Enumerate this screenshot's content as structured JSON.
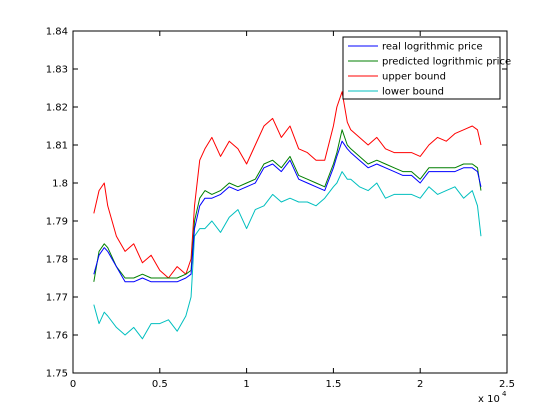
{
  "chart_data": {
    "type": "line",
    "title": "",
    "xlabel": "",
    "ylabel": "",
    "xlim": [
      0,
      2.5
    ],
    "ylim": [
      1.75,
      1.84
    ],
    "x_ticks": [
      "0",
      "0.5",
      "1",
      "1.5",
      "2",
      "2.5"
    ],
    "y_ticks": [
      "1.75",
      "1.76",
      "1.77",
      "1.78",
      "1.79",
      "1.8",
      "1.81",
      "1.82",
      "1.83",
      "1.84"
    ],
    "x_multiplier": {
      "base": "x 10",
      "exponent": "4"
    },
    "grid": false,
    "legend_position": "top-right",
    "x": [
      0.12,
      0.15,
      0.18,
      0.2,
      0.25,
      0.3,
      0.35,
      0.4,
      0.45,
      0.5,
      0.55,
      0.6,
      0.65,
      0.68,
      0.7,
      0.73,
      0.76,
      0.8,
      0.85,
      0.9,
      0.95,
      1.0,
      1.05,
      1.1,
      1.15,
      1.2,
      1.25,
      1.3,
      1.35,
      1.4,
      1.45,
      1.5,
      1.52,
      1.55,
      1.58,
      1.6,
      1.65,
      1.7,
      1.75,
      1.8,
      1.85,
      1.9,
      1.95,
      2.0,
      2.05,
      2.1,
      2.15,
      2.2,
      2.25,
      2.3,
      2.33,
      2.35
    ],
    "series": [
      {
        "name": "real logrithmic price",
        "color": "#0000ff",
        "values": [
          1.776,
          1.781,
          1.783,
          1.782,
          1.778,
          1.774,
          1.774,
          1.775,
          1.774,
          1.774,
          1.774,
          1.774,
          1.775,
          1.776,
          1.788,
          1.794,
          1.796,
          1.796,
          1.797,
          1.799,
          1.798,
          1.799,
          1.8,
          1.804,
          1.805,
          1.803,
          1.806,
          1.801,
          1.8,
          1.799,
          1.798,
          1.804,
          1.807,
          1.811,
          1.809,
          1.808,
          1.806,
          1.804,
          1.805,
          1.804,
          1.803,
          1.802,
          1.802,
          1.8,
          1.803,
          1.803,
          1.803,
          1.803,
          1.804,
          1.804,
          1.803,
          1.799
        ]
      },
      {
        "name": "predicted logrithmic price",
        "color": "#007f00",
        "values": [
          1.774,
          1.782,
          1.784,
          1.783,
          1.778,
          1.775,
          1.775,
          1.776,
          1.775,
          1.775,
          1.775,
          1.775,
          1.776,
          1.777,
          1.79,
          1.796,
          1.798,
          1.797,
          1.798,
          1.8,
          1.799,
          1.8,
          1.801,
          1.805,
          1.806,
          1.804,
          1.807,
          1.802,
          1.801,
          1.8,
          1.799,
          1.805,
          1.808,
          1.814,
          1.81,
          1.809,
          1.807,
          1.805,
          1.806,
          1.805,
          1.804,
          1.803,
          1.803,
          1.801,
          1.804,
          1.804,
          1.804,
          1.804,
          1.805,
          1.805,
          1.804,
          1.798
        ]
      },
      {
        "name": "upper bound",
        "color": "#ff0000",
        "values": [
          1.792,
          1.798,
          1.8,
          1.794,
          1.786,
          1.782,
          1.784,
          1.779,
          1.781,
          1.777,
          1.775,
          1.778,
          1.776,
          1.78,
          1.794,
          1.806,
          1.809,
          1.812,
          1.807,
          1.811,
          1.809,
          1.805,
          1.81,
          1.815,
          1.817,
          1.812,
          1.815,
          1.809,
          1.808,
          1.806,
          1.806,
          1.815,
          1.82,
          1.824,
          1.816,
          1.814,
          1.812,
          1.81,
          1.812,
          1.809,
          1.808,
          1.808,
          1.808,
          1.807,
          1.81,
          1.812,
          1.811,
          1.813,
          1.814,
          1.815,
          1.814,
          1.81
        ]
      },
      {
        "name": "lower bound",
        "color": "#00bfbf",
        "values": [
          1.768,
          1.763,
          1.766,
          1.765,
          1.762,
          1.76,
          1.762,
          1.759,
          1.763,
          1.763,
          1.764,
          1.761,
          1.765,
          1.77,
          1.786,
          1.788,
          1.788,
          1.79,
          1.787,
          1.791,
          1.793,
          1.788,
          1.793,
          1.794,
          1.797,
          1.795,
          1.796,
          1.795,
          1.795,
          1.794,
          1.796,
          1.799,
          1.8,
          1.803,
          1.801,
          1.801,
          1.799,
          1.798,
          1.8,
          1.796,
          1.797,
          1.797,
          1.797,
          1.796,
          1.799,
          1.797,
          1.798,
          1.799,
          1.796,
          1.798,
          1.794,
          1.786
        ]
      }
    ]
  }
}
